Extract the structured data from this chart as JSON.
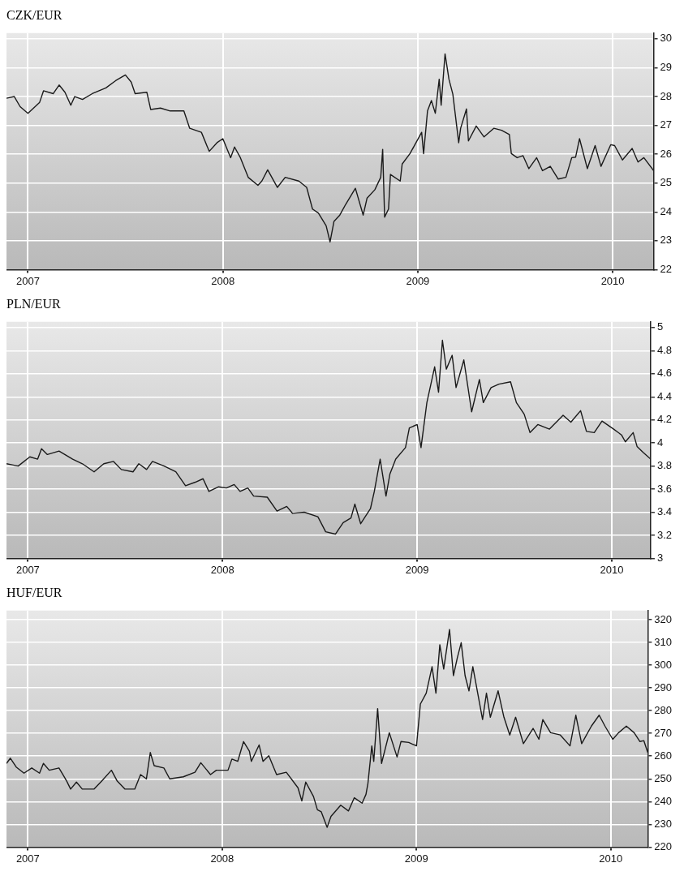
{
  "chart_data": [
    {
      "type": "line",
      "title": "CZK/EUR",
      "xlim": [
        2006.89,
        2010.21
      ],
      "xticks": [
        2007,
        2008,
        2009,
        2010
      ],
      "ylim": [
        22,
        30.2
      ],
      "yticks": [
        22,
        23,
        24,
        25,
        26,
        27,
        28,
        29,
        30
      ],
      "grid": true,
      "marker": "none",
      "line_style": "solid",
      "series": [
        {
          "color": "#1a1a1a",
          "x": [
            2006.89,
            2006.93,
            2006.96,
            2007.0,
            2007.06,
            2007.08,
            2007.13,
            2007.16,
            2007.19,
            2007.22,
            2007.24,
            2007.28,
            2007.33,
            2007.4,
            2007.45,
            2007.5,
            2007.53,
            2007.55,
            2007.61,
            2007.63,
            2007.68,
            2007.73,
            2007.8,
            2007.83,
            2007.89,
            2007.93,
            2007.97,
            2008.0,
            2008.04,
            2008.06,
            2008.09,
            2008.13,
            2008.18,
            2008.2,
            2008.23,
            2008.28,
            2008.32,
            2008.39,
            2008.43,
            2008.46,
            2008.49,
            2008.53,
            2008.55,
            2008.57,
            2008.6,
            2008.63,
            2008.68,
            2008.72,
            2008.74,
            2008.78,
            2008.81,
            2008.82,
            2008.83,
            2008.85,
            2008.86,
            2008.91,
            2008.92,
            2008.96,
            2009.02,
            2009.03,
            2009.05,
            2009.07,
            2009.09,
            2009.11,
            2009.12,
            2009.14,
            2009.16,
            2009.18,
            2009.21,
            2009.22,
            2009.25,
            2009.26,
            2009.3,
            2009.34,
            2009.39,
            2009.43,
            2009.47,
            2009.48,
            2009.51,
            2009.54,
            2009.57,
            2009.61,
            2009.64,
            2009.68,
            2009.72,
            2009.76,
            2009.79,
            2009.81,
            2009.83,
            2009.87,
            2009.91,
            2009.94,
            2009.99,
            2010.01,
            2010.05,
            2010.1,
            2010.13,
            2010.16,
            2010.21
          ],
          "values": [
            27.94,
            28.0,
            27.65,
            27.42,
            27.8,
            28.2,
            28.1,
            28.4,
            28.15,
            27.7,
            28.0,
            27.9,
            28.1,
            28.3,
            28.55,
            28.75,
            28.5,
            28.1,
            28.15,
            27.55,
            27.6,
            27.5,
            27.5,
            26.9,
            26.76,
            26.1,
            26.4,
            26.54,
            25.88,
            26.25,
            25.88,
            25.2,
            24.92,
            25.07,
            25.46,
            24.85,
            25.2,
            25.07,
            24.85,
            24.1,
            23.96,
            23.52,
            22.96,
            23.67,
            23.89,
            24.26,
            24.82,
            23.89,
            24.48,
            24.77,
            25.2,
            26.17,
            23.82,
            24.1,
            25.3,
            25.07,
            25.66,
            26.02,
            26.76,
            26.02,
            27.5,
            27.86,
            27.42,
            28.6,
            27.7,
            29.48,
            28.6,
            28.08,
            26.4,
            26.9,
            27.57,
            26.46,
            26.98,
            26.6,
            26.9,
            26.83,
            26.68,
            26.02,
            25.88,
            25.95,
            25.5,
            25.88,
            25.43,
            25.58,
            25.14,
            25.2,
            25.88,
            25.9,
            26.54,
            25.5,
            26.3,
            25.58,
            26.33,
            26.3,
            25.8,
            26.2,
            25.73,
            25.88,
            25.43
          ]
        }
      ]
    },
    {
      "type": "line",
      "title": "PLN/EUR",
      "xlim": [
        2006.89,
        2010.2
      ],
      "xticks": [
        2007,
        2008,
        2009,
        2010
      ],
      "ylim": [
        3,
        5.05
      ],
      "yticks": [
        3,
        3.2,
        3.4,
        3.6,
        3.8,
        4,
        4.2,
        4.4,
        4.6,
        4.8,
        5
      ],
      "grid": true,
      "marker": "none",
      "line_style": "solid",
      "series": [
        {
          "color": "#1a1a1a",
          "x": [
            2006.89,
            2006.92,
            2006.95,
            2007.01,
            2007.05,
            2007.07,
            2007.1,
            2007.16,
            2007.23,
            2007.28,
            2007.34,
            2007.39,
            2007.44,
            2007.48,
            2007.54,
            2007.57,
            2007.61,
            2007.64,
            2007.7,
            2007.76,
            2007.81,
            2007.86,
            2007.9,
            2007.93,
            2007.98,
            2008.02,
            2008.06,
            2008.09,
            2008.13,
            2008.16,
            2008.23,
            2008.28,
            2008.33,
            2008.36,
            2008.42,
            2008.49,
            2008.53,
            2008.58,
            2008.62,
            2008.66,
            2008.68,
            2008.71,
            2008.76,
            2008.78,
            2008.81,
            2008.84,
            2008.86,
            2008.89,
            2008.94,
            2008.96,
            2009.0,
            2009.02,
            2009.05,
            2009.09,
            2009.11,
            2009.13,
            2009.15,
            2009.18,
            2009.2,
            2009.24,
            2009.28,
            2009.32,
            2009.34,
            2009.38,
            2009.42,
            2009.48,
            2009.51,
            2009.55,
            2009.58,
            2009.62,
            2009.68,
            2009.75,
            2009.79,
            2009.84,
            2009.87,
            2009.91,
            2009.95,
            2010.01,
            2010.05,
            2010.07,
            2010.11,
            2010.13,
            2010.16,
            2010.2
          ],
          "values": [
            3.82,
            3.81,
            3.8,
            3.88,
            3.86,
            3.95,
            3.9,
            3.93,
            3.86,
            3.82,
            3.75,
            3.82,
            3.84,
            3.77,
            3.75,
            3.82,
            3.77,
            3.84,
            3.8,
            3.75,
            3.63,
            3.66,
            3.69,
            3.58,
            3.62,
            3.61,
            3.64,
            3.58,
            3.61,
            3.54,
            3.53,
            3.41,
            3.45,
            3.39,
            3.4,
            3.36,
            3.23,
            3.21,
            3.31,
            3.35,
            3.47,
            3.3,
            3.43,
            3.58,
            3.86,
            3.54,
            3.73,
            3.86,
            3.96,
            4.13,
            4.16,
            3.96,
            4.35,
            4.66,
            4.44,
            4.89,
            4.64,
            4.76,
            4.48,
            4.72,
            4.27,
            4.55,
            4.35,
            4.48,
            4.51,
            4.53,
            4.35,
            4.25,
            4.09,
            4.16,
            4.12,
            4.24,
            4.18,
            4.28,
            4.1,
            4.09,
            4.19,
            4.12,
            4.07,
            4.01,
            4.09,
            3.97,
            3.92,
            3.86
          ]
        }
      ]
    },
    {
      "type": "line",
      "title": "HUF/EUR",
      "xlim": [
        2006.89,
        2010.19
      ],
      "xticks": [
        2007,
        2008,
        2009,
        2010
      ],
      "ylim": [
        220,
        324
      ],
      "yticks": [
        220,
        230,
        240,
        250,
        260,
        270,
        280,
        290,
        300,
        310,
        320
      ],
      "grid": true,
      "marker": "none",
      "line_style": "solid",
      "series": [
        {
          "color": "#1a1a1a",
          "x": [
            2006.89,
            2006.91,
            2006.94,
            2006.98,
            2007.02,
            2007.06,
            2007.08,
            2007.11,
            2007.16,
            2007.18,
            2007.2,
            2007.22,
            2007.25,
            2007.28,
            2007.34,
            2007.38,
            2007.43,
            2007.46,
            2007.5,
            2007.55,
            2007.58,
            2007.61,
            2007.63,
            2007.65,
            2007.7,
            2007.73,
            2007.8,
            2007.86,
            2007.89,
            2007.94,
            2007.97,
            2008.03,
            2008.05,
            2008.08,
            2008.11,
            2008.14,
            2008.15,
            2008.19,
            2008.21,
            2008.24,
            2008.28,
            2008.33,
            2008.39,
            2008.41,
            2008.43,
            2008.47,
            2008.49,
            2008.51,
            2008.54,
            2008.56,
            2008.61,
            2008.65,
            2008.68,
            2008.72,
            2008.74,
            2008.75,
            2008.77,
            2008.78,
            2008.8,
            2008.82,
            2008.86,
            2008.9,
            2008.92,
            2008.96,
            2009.0,
            2009.02,
            2009.05,
            2009.08,
            2009.1,
            2009.12,
            2009.14,
            2009.17,
            2009.19,
            2009.21,
            2009.23,
            2009.25,
            2009.27,
            2009.29,
            2009.34,
            2009.36,
            2009.38,
            2009.42,
            2009.45,
            2009.48,
            2009.51,
            2009.55,
            2009.6,
            2009.63,
            2009.65,
            2009.69,
            2009.74,
            2009.79,
            2009.82,
            2009.85,
            2009.9,
            2009.94,
            2009.97,
            2010.01,
            2010.04,
            2010.08,
            2010.12,
            2010.15,
            2010.17,
            2010.19
          ],
          "values": [
            256.8,
            259.1,
            255.2,
            252.5,
            254.8,
            252.5,
            256.8,
            253.8,
            254.8,
            251.9,
            249.0,
            245.5,
            248.6,
            245.5,
            245.5,
            249.0,
            253.8,
            249.0,
            245.5,
            245.5,
            251.9,
            250.0,
            261.6,
            255.8,
            254.8,
            250.0,
            250.9,
            252.9,
            257.1,
            251.9,
            253.8,
            253.8,
            258.7,
            257.7,
            266.4,
            262.2,
            257.7,
            264.9,
            257.7,
            260.2,
            251.9,
            252.9,
            246.1,
            240.3,
            248.6,
            242.2,
            236.4,
            235.5,
            228.7,
            233.5,
            238.4,
            235.9,
            241.7,
            239.3,
            243.2,
            248.0,
            264.5,
            257.7,
            280.9,
            256.8,
            270.3,
            259.6,
            266.4,
            266.0,
            264.5,
            282.9,
            287.7,
            299.3,
            287.7,
            309.0,
            298.3,
            315.7,
            295.4,
            303.2,
            309.9,
            295.4,
            288.7,
            299.3,
            276.1,
            287.7,
            277.1,
            288.7,
            277.1,
            269.3,
            277.1,
            265.5,
            272.2,
            267.4,
            276.1,
            270.3,
            269.3,
            264.5,
            278.0,
            265.5,
            273.2,
            278.0,
            273.2,
            267.4,
            270.3,
            273.2,
            270.3,
            266.4,
            266.8,
            261.6
          ]
        }
      ]
    }
  ]
}
